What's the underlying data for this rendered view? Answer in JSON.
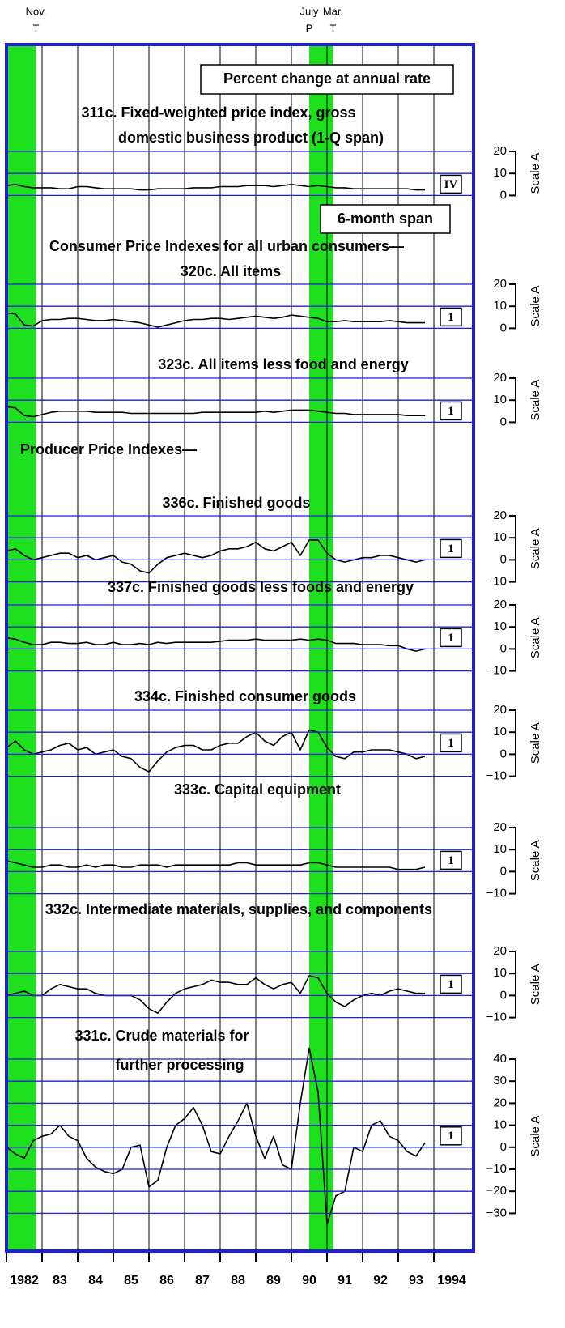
{
  "chart_data": {
    "type": "line",
    "header": "Percent change at annual rate",
    "span_note": "6-month span",
    "x": [
      1982,
      1982.25,
      1982.5,
      1982.75,
      1983,
      1983.25,
      1983.5,
      1983.75,
      1984,
      1984.25,
      1984.5,
      1984.75,
      1985,
      1985.25,
      1985.5,
      1985.75,
      1986,
      1986.25,
      1986.5,
      1986.75,
      1987,
      1987.25,
      1987.5,
      1987.75,
      1988,
      1988.25,
      1988.5,
      1988.75,
      1989,
      1989.25,
      1989.5,
      1989.75,
      1990,
      1990.25,
      1990.5,
      1990.75,
      1991,
      1991.25,
      1991.5,
      1991.75,
      1992,
      1992.25,
      1992.5,
      1992.75,
      1993,
      1993.25,
      1993.5,
      1993.75
    ],
    "xlim": [
      1982,
      1995
    ],
    "xticks": [
      {
        "value": 1982,
        "label": "1982"
      },
      {
        "value": 1983,
        "label": "83"
      },
      {
        "value": 1984,
        "label": "84"
      },
      {
        "value": 1985,
        "label": "85"
      },
      {
        "value": 1986,
        "label": "86"
      },
      {
        "value": 1987,
        "label": "87"
      },
      {
        "value": 1988,
        "label": "88"
      },
      {
        "value": 1989,
        "label": "89"
      },
      {
        "value": 1990,
        "label": "90"
      },
      {
        "value": 1991,
        "label": "91"
      },
      {
        "value": 1992,
        "label": "92"
      },
      {
        "value": 1993,
        "label": "93"
      },
      {
        "value": 1994,
        "label": "1994"
      }
    ],
    "shading": [
      {
        "from": 1981.5,
        "to": 1982.83
      },
      {
        "from": 1990.5,
        "to": 1991.17
      }
    ],
    "shading_color": "#1ee01e",
    "grid_color": "#1f1fd8",
    "turning_points": [
      {
        "x": 1982.83,
        "month": "Nov.",
        "type": "T"
      },
      {
        "x": 1990.5,
        "month": "July",
        "type": "P"
      },
      {
        "x": 1991.17,
        "month": "Mar.",
        "type": "T"
      }
    ],
    "panels": [
      {
        "title": [
          "311c. Fixed-weighted price index, gross",
          "domestic business product (1-Q span)"
        ],
        "span": "IV",
        "ylim": [
          0,
          20
        ],
        "yticks": [
          0,
          10,
          20
        ],
        "ylabel": "Scale A",
        "series": [
          {
            "color": "#000000",
            "values": [
              4.5,
              5,
              4,
              3.5,
              3.5,
              3.5,
              3,
              3,
              4,
              4,
              3.5,
              3,
              3,
              3,
              3,
              2.5,
              2.5,
              3,
              3,
              3,
              3,
              3.5,
              3.5,
              3.5,
              4,
              4,
              4,
              4.5,
              4.5,
              4.5,
              4,
              4.5,
              5,
              4.5,
              4,
              4.5,
              4,
              3.5,
              3.5,
              3,
              3,
              3,
              3,
              3,
              3,
              3,
              2.5,
              2.5
            ]
          }
        ]
      },
      {
        "group_title": "Consumer Price Indexes for all urban consumers—",
        "title": [
          "320c. All items"
        ],
        "span": "1",
        "ylim": [
          0,
          20
        ],
        "yticks": [
          0,
          10,
          20
        ],
        "ylabel": "Scale A",
        "series": [
          {
            "color": "#000000",
            "values": [
              7,
              6.5,
              1.5,
              1,
              3.5,
              4,
              4,
              4.5,
              4.5,
              4,
              3.5,
              3.5,
              4,
              3.5,
              3,
              2.5,
              1.5,
              0.5,
              1.5,
              2.5,
              3.5,
              4,
              4,
              4.5,
              4.5,
              4,
              4.5,
              5,
              5.5,
              5,
              4.5,
              5,
              6,
              5.5,
              5,
              4.5,
              3,
              3,
              3.5,
              3,
              3,
              3,
              3,
              3.5,
              3,
              2.5,
              2.5,
              2.5
            ]
          }
        ]
      },
      {
        "title": [
          "323c. All items less food and energy"
        ],
        "span": "1",
        "ylim": [
          0,
          20
        ],
        "yticks": [
          0,
          10,
          20
        ],
        "ylabel": "Scale A",
        "series": [
          {
            "color": "#000000",
            "values": [
              7,
              6.5,
              3,
              2.5,
              3.5,
              4.5,
              5,
              5,
              5,
              5,
              4.5,
              4.5,
              4.5,
              4.5,
              4,
              4,
              4,
              4,
              4,
              4,
              4,
              4,
              4.5,
              4.5,
              4.5,
              4.5,
              4.5,
              4.5,
              4.5,
              5,
              4.5,
              5,
              5.5,
              5.5,
              5.5,
              5,
              4.5,
              4,
              4,
              3.5,
              3.5,
              3.5,
              3.5,
              3.5,
              3.5,
              3,
              3,
              3
            ]
          }
        ]
      },
      {
        "group_title": "Producer Price Indexes—",
        "title": [
          "336c. Finished goods"
        ],
        "span": "1",
        "ylim": [
          -10,
          20
        ],
        "yticks": [
          {
            "value": -10,
            "label": "−10"
          },
          0,
          10,
          20
        ],
        "ylabel": "Scale A",
        "series": [
          {
            "color": "#000000",
            "values": [
              4,
              5,
              2,
              0,
              1,
              2,
              3,
              3,
              1,
              2,
              0,
              1,
              2,
              -1,
              -2,
              -5,
              -6,
              -2,
              1,
              2,
              3,
              2,
              1,
              2,
              4,
              5,
              5,
              6,
              8,
              5,
              4,
              6,
              8,
              2,
              9,
              9,
              3,
              0,
              -1,
              0,
              1,
              1,
              2,
              2,
              1,
              0,
              -1,
              0
            ]
          }
        ]
      },
      {
        "title": [
          "337c. Finished goods less foods and energy"
        ],
        "span": "1",
        "ylim": [
          -10,
          20
        ],
        "yticks": [
          {
            "value": -10,
            "label": "−10"
          },
          0,
          10,
          20
        ],
        "ylabel": "Scale A",
        "series": [
          {
            "color": "#000000",
            "values": [
              5,
              4.5,
              3,
              2,
              2,
              3,
              3,
              2.5,
              2.5,
              3,
              2,
              2,
              3,
              2,
              2,
              2.5,
              2,
              3,
              2.5,
              3,
              3,
              3,
              3,
              3,
              3.5,
              4,
              4,
              4,
              4.5,
              4,
              4,
              4,
              4,
              4.5,
              4,
              4.5,
              4,
              2.5,
              2.5,
              2.5,
              2,
              2,
              2,
              1.5,
              1.5,
              0,
              -1,
              0
            ]
          }
        ]
      },
      {
        "title": [
          "334c. Finished consumer goods"
        ],
        "span": "1",
        "ylim": [
          -10,
          20
        ],
        "yticks": [
          {
            "value": -10,
            "label": "−10"
          },
          0,
          10,
          20
        ],
        "ylabel": "Scale A",
        "series": [
          {
            "color": "#000000",
            "values": [
              3,
              6,
              2,
              0,
              1,
              2,
              4,
              5,
              2,
              3,
              0,
              1,
              2,
              -1,
              -2,
              -6,
              -8,
              -3,
              1,
              3,
              4,
              4,
              2,
              2,
              4,
              5,
              5,
              8,
              10,
              6,
              4,
              8,
              10,
              2,
              11,
              10,
              3,
              -1,
              -2,
              1,
              1,
              2,
              2,
              2,
              1,
              0,
              -2,
              -1
            ]
          }
        ]
      },
      {
        "title": [
          "333c. Capital equipment"
        ],
        "span": "1",
        "ylim": [
          -10,
          20
        ],
        "yticks": [
          {
            "value": -10,
            "label": "−10"
          },
          0,
          10,
          20
        ],
        "ylabel": "Scale A",
        "series": [
          {
            "color": "#000000",
            "values": [
              5,
              4,
              3,
              2,
              2,
              3,
              3,
              2,
              2,
              3,
              2,
              3,
              3,
              2,
              2,
              3,
              3,
              3,
              2,
              3,
              3,
              3,
              3,
              3,
              3,
              3,
              4,
              4,
              3,
              3,
              3,
              3,
              3,
              3,
              4,
              4,
              3,
              2,
              2,
              2,
              2,
              2,
              2,
              2,
              1,
              1,
              1,
              2
            ]
          }
        ]
      },
      {
        "title": [
          "332c. Intermediate materials, supplies, and components"
        ],
        "span": "1",
        "ylim": [
          -10,
          20
        ],
        "yticks": [
          {
            "value": -10,
            "label": "−10"
          },
          0,
          10,
          20
        ],
        "ylabel": "Scale A",
        "series": [
          {
            "color": "#000000",
            "values": [
              0,
              1,
              2,
              0,
              0,
              3,
              5,
              4,
              3,
              3,
              1,
              0,
              0,
              0,
              0,
              -2,
              -6,
              -8,
              -3,
              1,
              3,
              4,
              5,
              7,
              6,
              6,
              5,
              5,
              8,
              5,
              3,
              5,
              6,
              1,
              9,
              8,
              1,
              -3,
              -5,
              -2,
              0,
              1,
              0,
              2,
              3,
              2,
              1,
              1
            ]
          }
        ]
      },
      {
        "title": [
          "331c. Crude materials for",
          "further processing"
        ],
        "span": "1",
        "ylim": [
          -30,
          40
        ],
        "yticks": [
          {
            "value": -30,
            "label": "−30"
          },
          {
            "value": -20,
            "label": "−20"
          },
          {
            "value": -10,
            "label": "−10"
          },
          0,
          10,
          20,
          30,
          40
        ],
        "ylabel": "Scale A",
        "series": [
          {
            "color": "#000000",
            "values": [
              0,
              -3,
              -5,
              3,
              5,
              6,
              10,
              5,
              3,
              -5,
              -9,
              -11,
              -12,
              -10,
              0,
              1,
              -18,
              -15,
              0,
              10,
              13,
              18,
              10,
              -2,
              -3,
              5,
              12,
              20,
              5,
              -5,
              5,
              -8,
              -10,
              20,
              45,
              25,
              -35,
              -22,
              -20,
              0,
              -2,
              10,
              12,
              5,
              3,
              -2,
              -4,
              2
            ]
          }
        ]
      }
    ]
  }
}
